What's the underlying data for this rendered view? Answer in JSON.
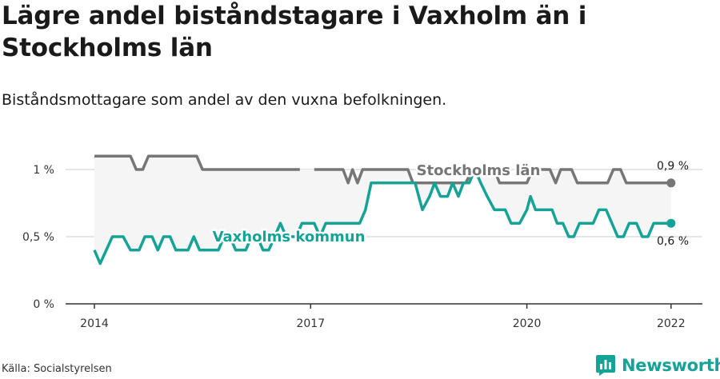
{
  "title": "Lägre andel biståndstagare i Vaxholm än i Stockholms län",
  "subtitle": "Biståndsmottagare som andel av den vuxna befolkningen.",
  "source": "Källa: Socialstyrelsen",
  "brand": {
    "name": "Newsworthy",
    "icon": "newsworthy-logo-icon"
  },
  "chart_data": {
    "type": "line",
    "x_ticks": [
      "2014",
      "2017",
      "2020",
      "2022"
    ],
    "y_ticks": [
      {
        "value": 0,
        "label": "0 %"
      },
      {
        "value": 0.5,
        "label": "0,5 %"
      },
      {
        "value": 1,
        "label": "1 %"
      }
    ],
    "ylim": [
      0,
      1.15
    ],
    "xlim": [
      2013.6,
      2022.4
    ],
    "grid": true,
    "series": [
      {
        "name": "Stockholms län",
        "color": "#767676",
        "end_label": "0,9 %",
        "points": [
          [
            2014.0,
            1.1
          ],
          [
            2014.2,
            1.1
          ],
          [
            2014.4,
            1.1
          ],
          [
            2014.5,
            1.1
          ],
          [
            2014.58,
            1.0
          ],
          [
            2014.67,
            1.0
          ],
          [
            2014.75,
            1.1
          ],
          [
            2014.85,
            1.1
          ],
          [
            2015.0,
            1.1
          ],
          [
            2015.2,
            1.1
          ],
          [
            2015.33,
            1.1
          ],
          [
            2015.42,
            1.1
          ],
          [
            2015.5,
            1.0
          ],
          [
            2015.7,
            1.0
          ],
          [
            2015.9,
            1.0
          ],
          [
            2016.1,
            1.0
          ],
          [
            2016.3,
            1.0
          ],
          [
            2016.5,
            1.0
          ],
          [
            2016.7,
            1.0
          ],
          [
            2016.85,
            1.0
          ],
          null,
          [
            2017.05,
            1.0
          ],
          [
            2017.2,
            1.0
          ],
          [
            2017.35,
            1.0
          ],
          [
            2017.45,
            1.0
          ],
          [
            2017.52,
            0.9
          ],
          [
            2017.58,
            1.0
          ],
          [
            2017.65,
            0.9
          ],
          [
            2017.72,
            1.0
          ],
          [
            2017.9,
            1.0
          ],
          [
            2018.1,
            1.0
          ],
          [
            2018.25,
            1.0
          ],
          [
            2018.35,
            1.0
          ],
          [
            2018.42,
            0.9
          ],
          [
            2018.55,
            0.9
          ],
          [
            2018.7,
            0.9
          ],
          [
            2018.85,
            0.9
          ],
          [
            2019.0,
            0.9
          ],
          [
            2019.15,
            0.9
          ],
          [
            2019.25,
            1.0
          ],
          [
            2019.35,
            1.0
          ],
          [
            2019.45,
            1.0
          ],
          [
            2019.55,
            1.0
          ],
          [
            2019.62,
            0.9
          ],
          [
            2019.75,
            0.9
          ],
          [
            2019.88,
            0.9
          ],
          [
            2020.0,
            0.9
          ],
          [
            2020.08,
            1.0
          ],
          [
            2020.2,
            1.0
          ],
          [
            2020.32,
            1.0
          ],
          [
            2020.4,
            0.9
          ],
          [
            2020.47,
            1.0
          ],
          [
            2020.62,
            1.0
          ],
          [
            2020.7,
            0.9
          ],
          [
            2020.8,
            0.9
          ],
          [
            2020.95,
            0.9
          ],
          [
            2021.05,
            0.9
          ],
          [
            2021.12,
            0.9
          ],
          [
            2021.2,
            1.0
          ],
          [
            2021.3,
            1.0
          ],
          [
            2021.38,
            0.9
          ],
          [
            2021.5,
            0.9
          ],
          [
            2021.7,
            0.9
          ],
          [
            2021.85,
            0.9
          ],
          [
            2022.0,
            0.9
          ]
        ]
      },
      {
        "name": "Vaxholms kommun",
        "color": "#14a396",
        "end_label": "0,6 %",
        "points": [
          [
            2014.0,
            0.4
          ],
          [
            2014.08,
            0.3
          ],
          [
            2014.25,
            0.5
          ],
          [
            2014.4,
            0.5
          ],
          [
            2014.5,
            0.4
          ],
          [
            2014.62,
            0.4
          ],
          [
            2014.7,
            0.5
          ],
          [
            2014.8,
            0.5
          ],
          [
            2014.88,
            0.4
          ],
          [
            2014.96,
            0.5
          ],
          [
            2015.05,
            0.5
          ],
          [
            2015.13,
            0.4
          ],
          [
            2015.3,
            0.4
          ],
          [
            2015.38,
            0.5
          ],
          [
            2015.46,
            0.4
          ],
          [
            2015.58,
            0.4
          ],
          [
            2015.72,
            0.4
          ],
          [
            2015.8,
            0.5
          ],
          [
            2015.88,
            0.5
          ],
          [
            2015.96,
            0.4
          ],
          [
            2016.1,
            0.4
          ],
          [
            2016.18,
            0.5
          ],
          [
            2016.26,
            0.5
          ],
          [
            2016.34,
            0.4
          ],
          [
            2016.42,
            0.4
          ],
          [
            2016.5,
            0.5
          ],
          [
            2016.58,
            0.6
          ],
          [
            2016.66,
            0.5
          ],
          [
            2016.8,
            0.5
          ],
          [
            2016.88,
            0.6
          ],
          [
            2016.96,
            0.6
          ],
          [
            2017.05,
            0.6
          ],
          [
            2017.13,
            0.5
          ],
          [
            2017.21,
            0.6
          ],
          [
            2017.3,
            0.6
          ],
          [
            2017.45,
            0.6
          ],
          [
            2017.6,
            0.6
          ],
          [
            2017.68,
            0.6
          ],
          [
            2017.76,
            0.7
          ],
          [
            2017.84,
            0.9
          ],
          [
            2018.0,
            0.9
          ],
          [
            2018.15,
            0.9
          ],
          [
            2018.3,
            0.9
          ],
          [
            2018.45,
            0.9
          ],
          [
            2018.55,
            0.7
          ],
          [
            2018.65,
            0.8
          ],
          [
            2018.72,
            0.9
          ],
          [
            2018.8,
            0.8
          ],
          [
            2018.9,
            0.8
          ],
          [
            2018.97,
            0.9
          ],
          [
            2019.05,
            0.8
          ],
          [
            2019.12,
            0.9
          ],
          [
            2019.2,
            0.9
          ],
          [
            2019.28,
            1.0
          ],
          [
            2019.36,
            0.9
          ],
          [
            2019.45,
            0.8
          ],
          [
            2019.55,
            0.7
          ],
          [
            2019.7,
            0.7
          ],
          [
            2019.78,
            0.6
          ],
          [
            2019.9,
            0.6
          ],
          [
            2020.0,
            0.7
          ],
          [
            2020.05,
            0.8
          ],
          [
            2020.12,
            0.7
          ],
          [
            2020.25,
            0.7
          ],
          [
            2020.35,
            0.7
          ],
          [
            2020.42,
            0.6
          ],
          [
            2020.5,
            0.6
          ],
          [
            2020.58,
            0.5
          ],
          [
            2020.65,
            0.5
          ],
          [
            2020.73,
            0.6
          ],
          [
            2020.85,
            0.6
          ],
          [
            2020.92,
            0.6
          ],
          [
            2021.0,
            0.7
          ],
          [
            2021.1,
            0.7
          ],
          [
            2021.18,
            0.6
          ],
          [
            2021.26,
            0.5
          ],
          [
            2021.34,
            0.5
          ],
          [
            2021.42,
            0.6
          ],
          [
            2021.52,
            0.6
          ],
          [
            2021.6,
            0.5
          ],
          [
            2021.68,
            0.5
          ],
          [
            2021.76,
            0.6
          ],
          [
            2021.9,
            0.6
          ],
          [
            2022.0,
            0.6
          ]
        ]
      }
    ]
  }
}
